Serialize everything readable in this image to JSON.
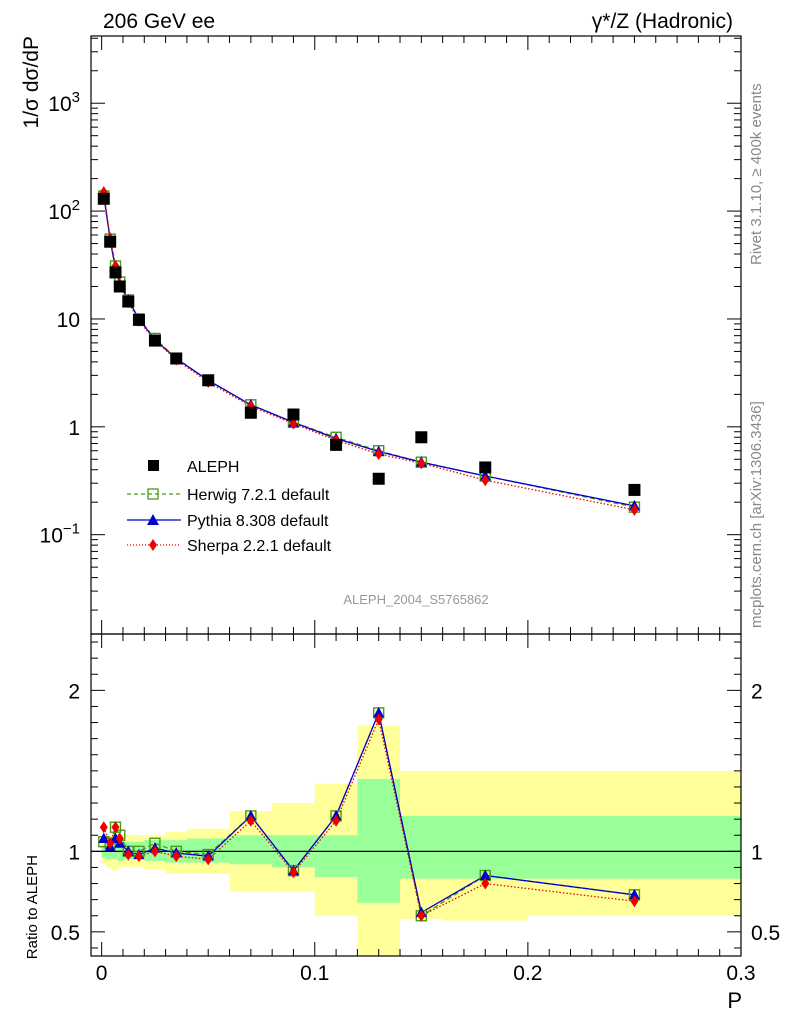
{
  "header": {
    "left": "206 GeV ee",
    "right": "γ*/Z (Hadronic)"
  },
  "side": {
    "rivet": "Rivet 3.1.10, ≥ 400k events",
    "mcplots": "mcplots.cern.ch [arXiv:1306.3436]"
  },
  "analysis_label": "ALEPH_2004_S5765862",
  "axes": {
    "ylabel_main": "1/σ  dσ/dP",
    "ylabel_ratio": "Ratio to ALEPH",
    "xlabel": "P"
  },
  "legend": [
    {
      "label": "ALEPH",
      "marker": "square-filled",
      "color": "#000000"
    },
    {
      "label": "Herwig 7.2.1 default",
      "marker": "square-open",
      "color": "#4a9a1a"
    },
    {
      "label": "Pythia 8.308 default",
      "marker": "triangle",
      "color": "#0000cc"
    },
    {
      "label": "Sherpa 2.2.1 default",
      "marker": "diamond",
      "color": "#ee0000"
    }
  ],
  "chart_data": {
    "type": "scatter",
    "x": [
      0.001,
      0.004,
      0.0065,
      0.0085,
      0.0125,
      0.0175,
      0.025,
      0.035,
      0.05,
      0.07,
      0.09,
      0.11,
      0.13,
      0.15,
      0.18,
      0.25
    ],
    "xlim": [
      -0.005,
      0.3
    ],
    "xticks": [
      0,
      0.1,
      0.2,
      0.3
    ],
    "xtick_labels": [
      "0",
      "0.1",
      "0.2",
      "0.3"
    ],
    "main": {
      "yscale": "log",
      "ylim": [
        0.012,
        4200
      ],
      "yticks": [
        0.1,
        1,
        10,
        100,
        1000
      ],
      "ytick_labels": [
        "10^-1",
        "1",
        "10",
        "10^2",
        "10^3"
      ],
      "series": [
        {
          "name": "ALEPH",
          "values": [
            130,
            52,
            27,
            20,
            14.5,
            9.8,
            6.3,
            4.3,
            2.7,
            1.35,
            1.3,
            0.68,
            0.33,
            0.8,
            0.42,
            0.26
          ]
        },
        {
          "name": "Herwig 7.2.1 default",
          "values": [
            138,
            55,
            31,
            22,
            15,
            10,
            6.6,
            4.3,
            2.7,
            1.6,
            1.1,
            0.8,
            0.6,
            0.47,
            0.35,
            0.18
          ]
        },
        {
          "name": "Pythia 8.308 default",
          "values": [
            140,
            54,
            29,
            21,
            15,
            10,
            6.4,
            4.3,
            2.7,
            1.6,
            1.1,
            0.78,
            0.59,
            0.47,
            0.35,
            0.185
          ]
        },
        {
          "name": "Sherpa 2.2.1 default",
          "values": [
            150,
            56,
            31,
            21,
            14.3,
            9.6,
            6.3,
            4.2,
            2.6,
            1.55,
            1.07,
            0.75,
            0.56,
            0.46,
            0.32,
            0.17
          ]
        }
      ]
    },
    "ratio": {
      "ylim": [
        0.35,
        2.35
      ],
      "yticks": [
        0.5,
        1,
        2
      ],
      "ytick_labels": [
        "0.5",
        "1",
        "2"
      ],
      "ref": 1,
      "series": [
        {
          "name": "Herwig 7.2.1 default",
          "values": [
            1.06,
            1.05,
            1.15,
            1.1,
            1.0,
            1.0,
            1.05,
            1.0,
            0.98,
            1.22,
            0.88,
            1.22,
            1.86,
            0.6,
            0.85,
            0.73
          ]
        },
        {
          "name": "Pythia 8.308 default",
          "values": [
            1.08,
            1.03,
            1.08,
            1.05,
            1.0,
            0.98,
            1.02,
            0.99,
            0.97,
            1.22,
            0.88,
            1.22,
            1.86,
            0.62,
            0.85,
            0.73
          ]
        },
        {
          "name": "Sherpa 2.2.1 default",
          "values": [
            1.15,
            1.05,
            1.15,
            1.08,
            0.98,
            0.97,
            1.0,
            0.97,
            0.95,
            1.19,
            0.87,
            1.19,
            1.82,
            0.6,
            0.8,
            0.69
          ]
        }
      ],
      "bands": [
        {
          "x0": 0.0,
          "x1": 0.002,
          "stat_lo": 0.96,
          "stat_hi": 1.04,
          "tot_lo": 0.92,
          "tot_hi": 1.08
        },
        {
          "x0": 0.002,
          "x1": 0.005,
          "stat_lo": 0.95,
          "stat_hi": 1.05,
          "tot_lo": 0.9,
          "tot_hi": 1.1
        },
        {
          "x0": 0.005,
          "x1": 0.0075,
          "stat_lo": 0.95,
          "stat_hi": 1.05,
          "tot_lo": 0.88,
          "tot_hi": 1.12
        },
        {
          "x0": 0.0075,
          "x1": 0.01,
          "stat_lo": 0.94,
          "stat_hi": 1.06,
          "tot_lo": 0.9,
          "tot_hi": 1.1
        },
        {
          "x0": 0.01,
          "x1": 0.015,
          "stat_lo": 0.95,
          "stat_hi": 1.06,
          "tot_lo": 0.9,
          "tot_hi": 1.1
        },
        {
          "x0": 0.015,
          "x1": 0.02,
          "stat_lo": 0.95,
          "stat_hi": 1.06,
          "tot_lo": 0.9,
          "tot_hi": 1.1
        },
        {
          "x0": 0.02,
          "x1": 0.03,
          "stat_lo": 0.94,
          "stat_hi": 1.07,
          "tot_lo": 0.89,
          "tot_hi": 1.1
        },
        {
          "x0": 0.03,
          "x1": 0.04,
          "stat_lo": 0.93,
          "stat_hi": 1.07,
          "tot_lo": 0.86,
          "tot_hi": 1.12
        },
        {
          "x0": 0.04,
          "x1": 0.06,
          "stat_lo": 0.93,
          "stat_hi": 1.08,
          "tot_lo": 0.86,
          "tot_hi": 1.14
        },
        {
          "x0": 0.06,
          "x1": 0.08,
          "stat_lo": 0.92,
          "stat_hi": 1.1,
          "tot_lo": 0.75,
          "tot_hi": 1.25
        },
        {
          "x0": 0.08,
          "x1": 0.1,
          "stat_lo": 0.9,
          "stat_hi": 1.1,
          "tot_lo": 0.75,
          "tot_hi": 1.3
        },
        {
          "x0": 0.1,
          "x1": 0.12,
          "stat_lo": 0.84,
          "stat_hi": 1.1,
          "tot_lo": 0.6,
          "tot_hi": 1.42
        },
        {
          "x0": 0.12,
          "x1": 0.14,
          "stat_lo": 0.68,
          "stat_hi": 1.45,
          "tot_lo": 0.35,
          "tot_hi": 1.78
        },
        {
          "x0": 0.14,
          "x1": 0.16,
          "stat_lo": 0.83,
          "stat_hi": 1.22,
          "tot_lo": 0.58,
          "tot_hi": 1.5
        },
        {
          "x0": 0.16,
          "x1": 0.2,
          "stat_lo": 0.83,
          "stat_hi": 1.22,
          "tot_lo": 0.57,
          "tot_hi": 1.5
        },
        {
          "x0": 0.2,
          "x1": 0.3,
          "stat_lo": 0.83,
          "stat_hi": 1.22,
          "tot_lo": 0.6,
          "tot_hi": 1.5
        }
      ]
    },
    "colors": {
      "stat_band": "#99ff99",
      "tot_band": "#ffff99",
      "herwig": "#4a9a1a",
      "pythia": "#0000cc",
      "sherpa": "#ee0000",
      "data": "#000000"
    },
    "grid": false,
    "legend_position": "lower-left"
  }
}
